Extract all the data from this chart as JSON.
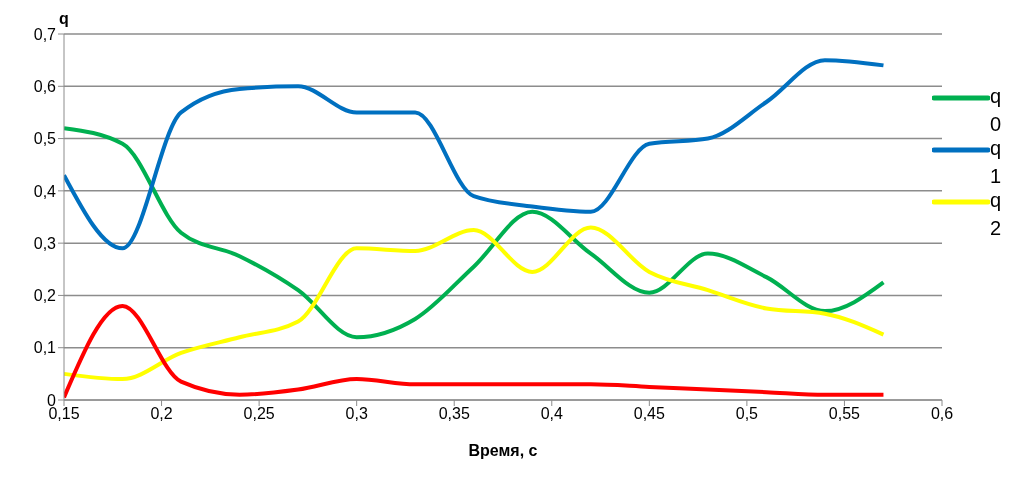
{
  "chart_data": {
    "type": "line",
    "xlabel": "Время, с",
    "ylabel": "q",
    "x": [
      0.15,
      0.18,
      0.21,
      0.24,
      0.27,
      0.3,
      0.33,
      0.36,
      0.39,
      0.42,
      0.45,
      0.48,
      0.51,
      0.54,
      0.57
    ],
    "series": [
      {
        "name": "q0",
        "color": "#00b050",
        "values": [
          0.52,
          0.49,
          0.32,
          0.275,
          0.21,
          0.12,
          0.155,
          0.255,
          0.36,
          0.28,
          0.205,
          0.28,
          0.235,
          0.17,
          0.225
        ]
      },
      {
        "name": "q1",
        "color": "#0070c0",
        "values": [
          0.43,
          0.29,
          0.55,
          0.595,
          0.6,
          0.55,
          0.55,
          0.39,
          0.37,
          0.36,
          0.49,
          0.5,
          0.57,
          0.65,
          0.64
        ]
      },
      {
        "name": "q2",
        "color": "#ffff00",
        "values": [
          0.05,
          0.04,
          0.09,
          0.12,
          0.15,
          0.29,
          0.285,
          0.325,
          0.245,
          0.33,
          0.245,
          0.21,
          0.175,
          0.165,
          0.125
        ]
      },
      {
        "color": "#ff0000",
        "values": [
          0.005,
          0.18,
          0.035,
          0.01,
          0.02,
          0.04,
          0.03,
          0.03,
          0.03,
          0.03,
          0.025,
          0.02,
          0.015,
          0.01,
          0.01
        ]
      }
    ],
    "xlim": [
      0.15,
      0.6
    ],
    "xticks": [
      {
        "value": 0.15,
        "label": "0,15"
      },
      {
        "value": 0.2,
        "label": "0,2"
      },
      {
        "value": 0.25,
        "label": "0,25"
      },
      {
        "value": 0.3,
        "label": "0,3"
      },
      {
        "value": 0.35,
        "label": "0,35"
      },
      {
        "value": 0.4,
        "label": "0,4"
      },
      {
        "value": 0.45,
        "label": "0,45"
      },
      {
        "value": 0.5,
        "label": "0,5"
      },
      {
        "value": 0.55,
        "label": "0,55"
      },
      {
        "value": 0.6,
        "label": "0,6"
      }
    ],
    "ylim": [
      0,
      0.7
    ],
    "yticks": [
      0,
      {
        "value": 0.1,
        "label": "0,1"
      },
      {
        "value": 0.2,
        "label": "0,2"
      },
      {
        "value": 0.3,
        "label": "0,3"
      },
      {
        "value": 0.4,
        "label": "0,4"
      },
      {
        "value": 0.5,
        "label": "0,5"
      },
      {
        "value": 0.6,
        "label": "0,6"
      },
      {
        "value": 0.7,
        "label": "0,7"
      }
    ],
    "grid": "y",
    "legend": "right",
    "marker": "none",
    "line_style": "solid"
  }
}
